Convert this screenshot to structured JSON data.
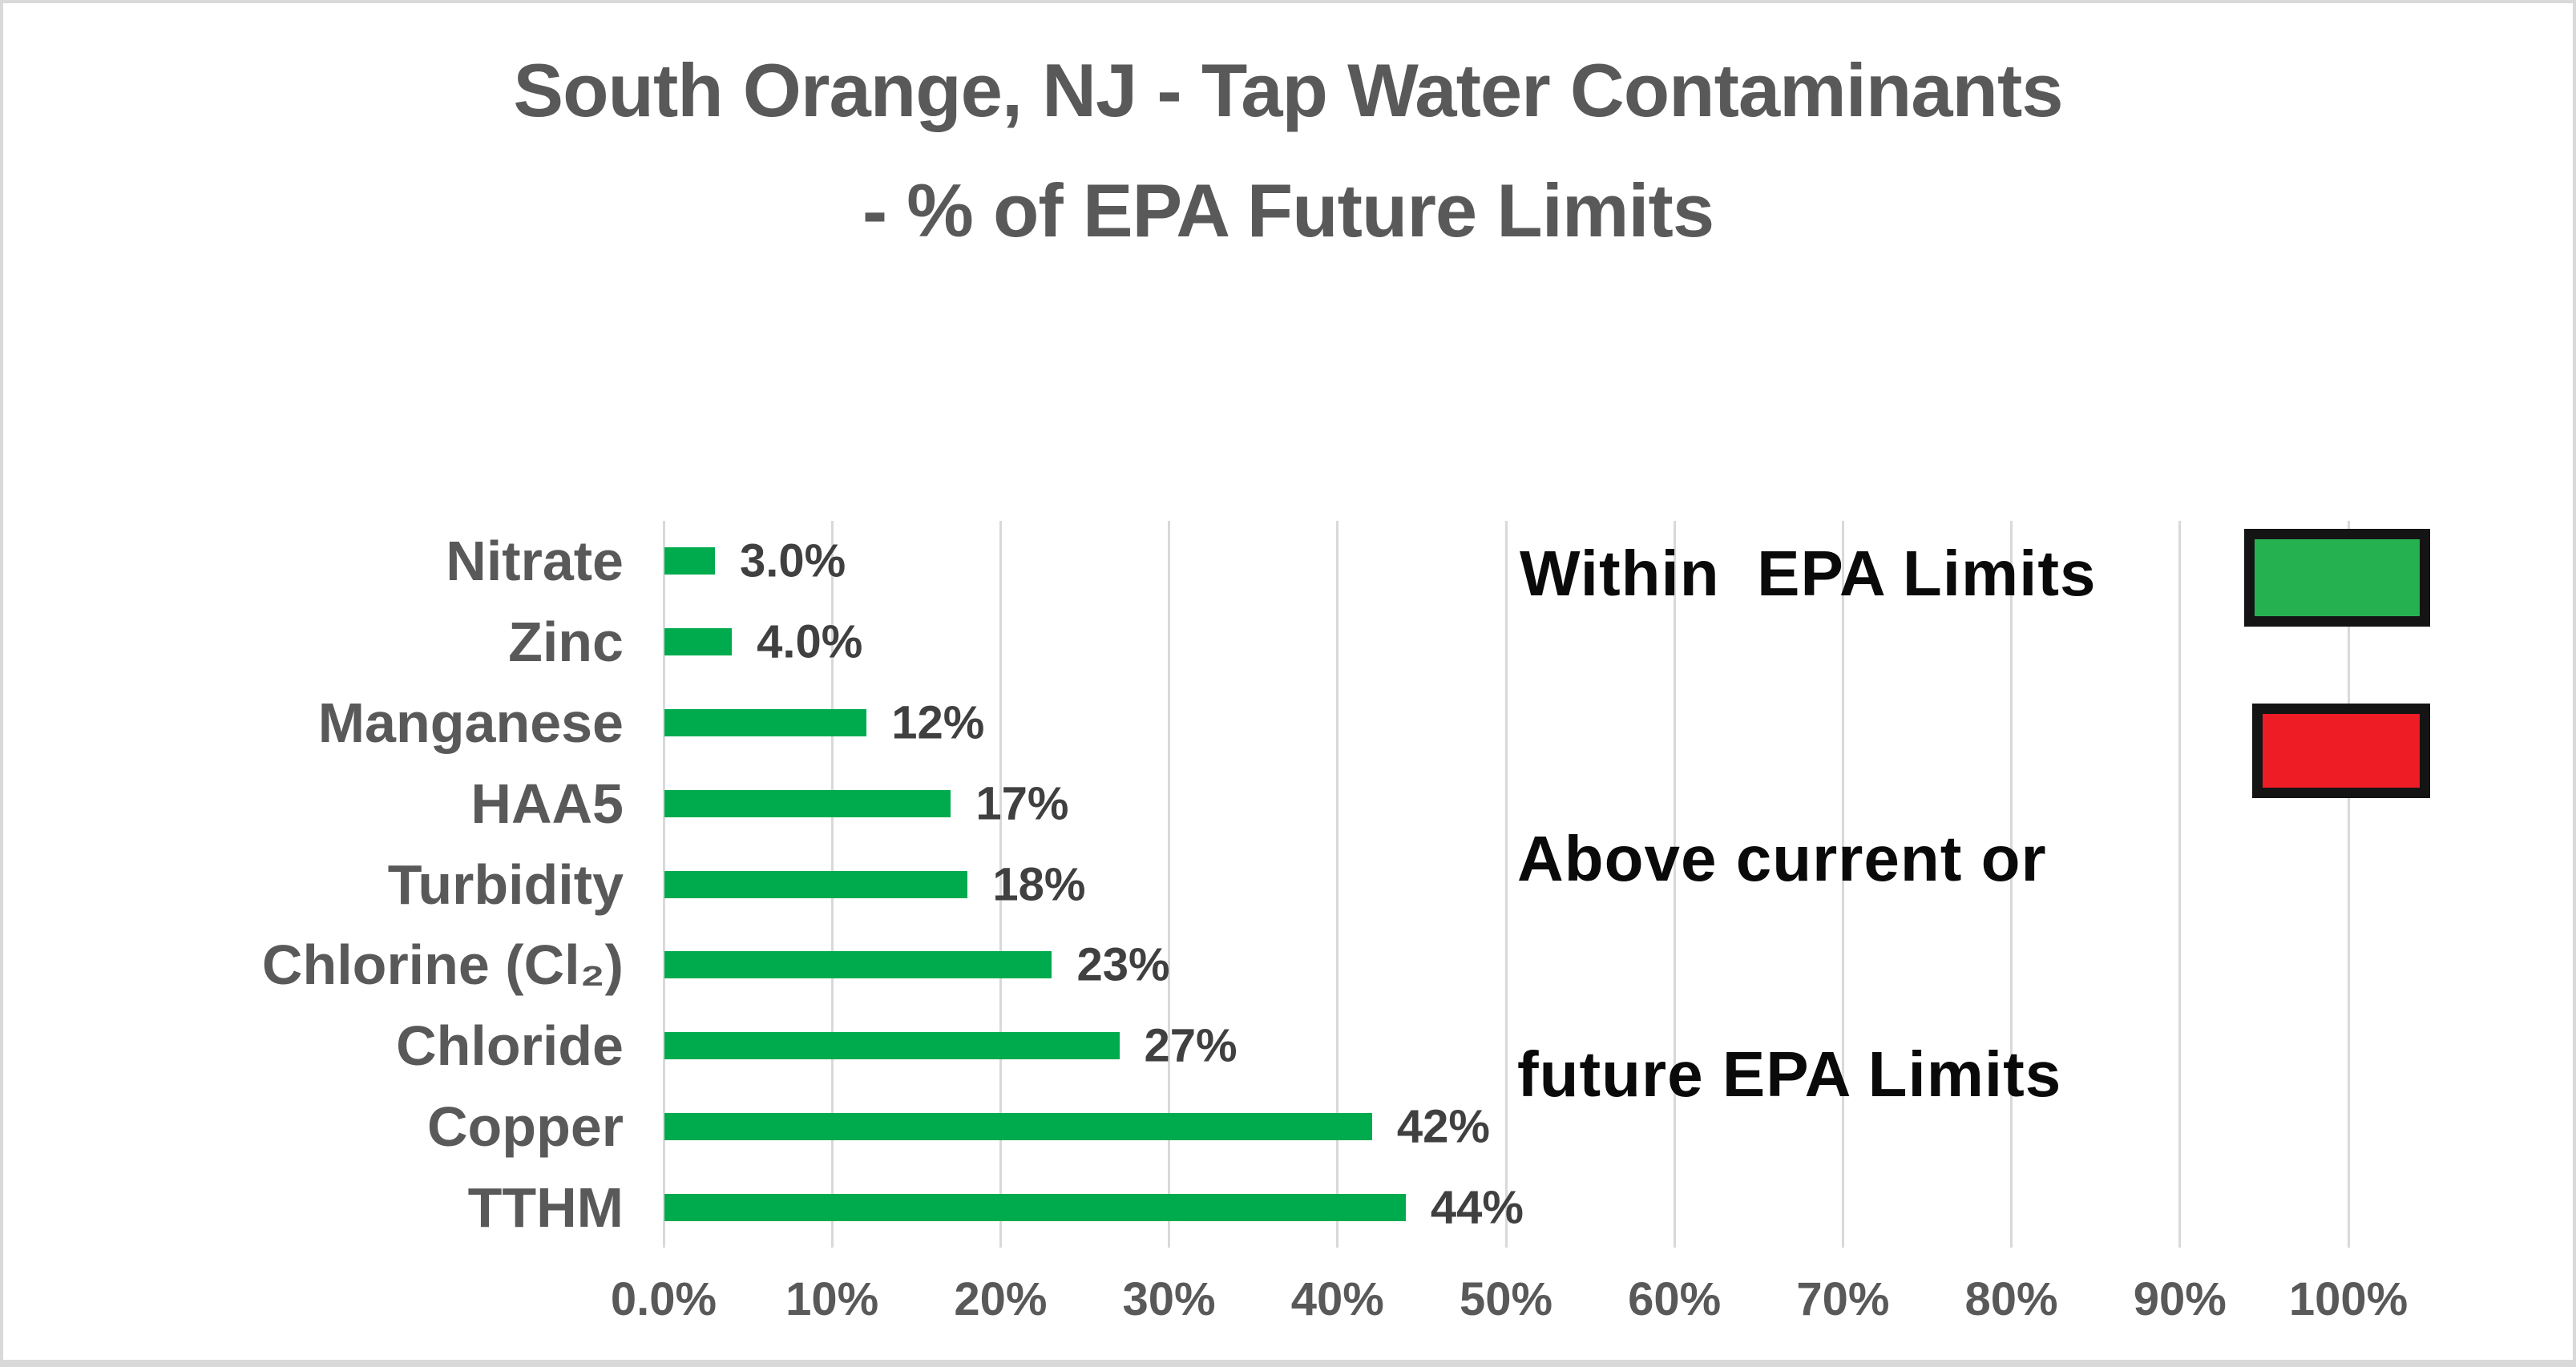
{
  "title": {
    "line1": "South Orange, NJ - Tap Water Contaminants",
    "line2": "- % of EPA Future Limits"
  },
  "chart_data": {
    "type": "bar",
    "orientation": "horizontal",
    "title": "South Orange, NJ - Tap Water Contaminants - % of EPA Future Limits",
    "categories": [
      "Nitrate",
      "Zinc",
      "Manganese",
      "HAA5",
      "Turbidity",
      "Chlorine (Cl₂)",
      "Chloride",
      "Copper",
      "TTHM"
    ],
    "values": [
      3,
      4,
      12,
      17,
      18,
      23,
      27,
      42,
      44
    ],
    "value_labels": [
      "3.0%",
      "4.0%",
      "12%",
      "17%",
      "18%",
      "23%",
      "27%",
      "42%",
      "44%"
    ],
    "xlabel": "",
    "ylabel": "",
    "xlim": [
      0,
      100
    ],
    "x_ticks": [
      0,
      10,
      20,
      30,
      40,
      50,
      60,
      70,
      80,
      90,
      100
    ],
    "x_tick_labels": [
      "0.0%",
      "10%",
      "20%",
      "30%",
      "40%",
      "50%",
      "60%",
      "70%",
      "80%",
      "90%",
      "100%"
    ],
    "grid": "vertical",
    "legend_position": "inside-top-right",
    "series_color": "#00ab4e"
  },
  "legend": {
    "items": [
      {
        "label": "Within  EPA Limits",
        "lines": [
          "Within  EPA Limits"
        ],
        "swatch_color": "#26b150"
      },
      {
        "label": "Above current or future EPA Limits",
        "lines": [
          "Above current or",
          "future EPA Limits"
        ],
        "swatch_color": "#ee1c25"
      }
    ],
    "swatch_border_color": "#141414"
  },
  "colors": {
    "bar_green": "#00ab4e",
    "legend_green": "#26b150",
    "legend_red": "#ee1c25",
    "gridline": "#d9d9d9",
    "axis_text": "#595959",
    "value_text": "#404040",
    "title_text": "#595959",
    "legend_text": "#0a0a0a",
    "frame_border": "#d9d9d9"
  }
}
